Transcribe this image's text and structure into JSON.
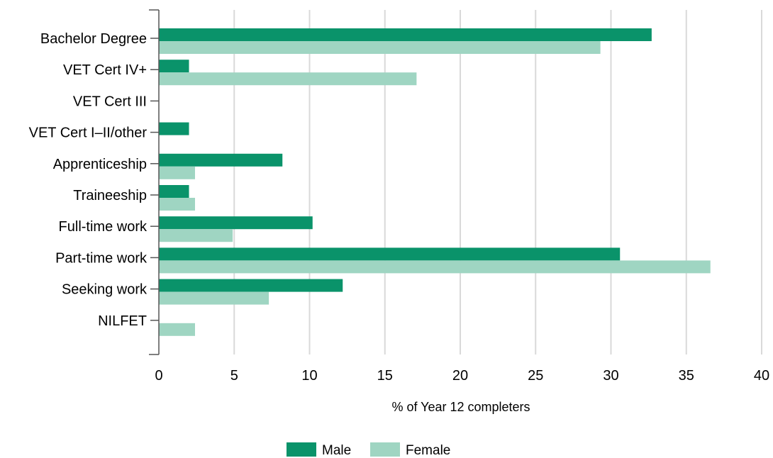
{
  "chart_data": {
    "type": "bar",
    "orientation": "horizontal",
    "categories": [
      "Bachelor Degree",
      "VET Cert IV+",
      "VET Cert III",
      "VET Cert I–II/other",
      "Apprenticeship",
      "Traineeship",
      "Full-time work",
      "Part-time work",
      "Seeking work",
      "NILFET"
    ],
    "series": [
      {
        "name": "Male",
        "color": "#0a936a",
        "values": [
          32.7,
          2.0,
          0,
          2.0,
          8.2,
          2.0,
          10.2,
          30.6,
          12.2,
          0
        ]
      },
      {
        "name": "Female",
        "color": "#9fd5c2",
        "values": [
          29.3,
          17.1,
          0,
          0,
          2.4,
          2.4,
          4.9,
          36.6,
          7.3,
          2.4
        ]
      }
    ],
    "xlabel": "% of Year 12 completers",
    "ylabel": "",
    "title": "",
    "xlim": [
      0,
      40
    ],
    "xticks": [
      "0",
      "5",
      "10",
      "15",
      "20",
      "25",
      "30",
      "35",
      "40"
    ],
    "grid": "vertical",
    "legend_position": "bottom-center"
  }
}
